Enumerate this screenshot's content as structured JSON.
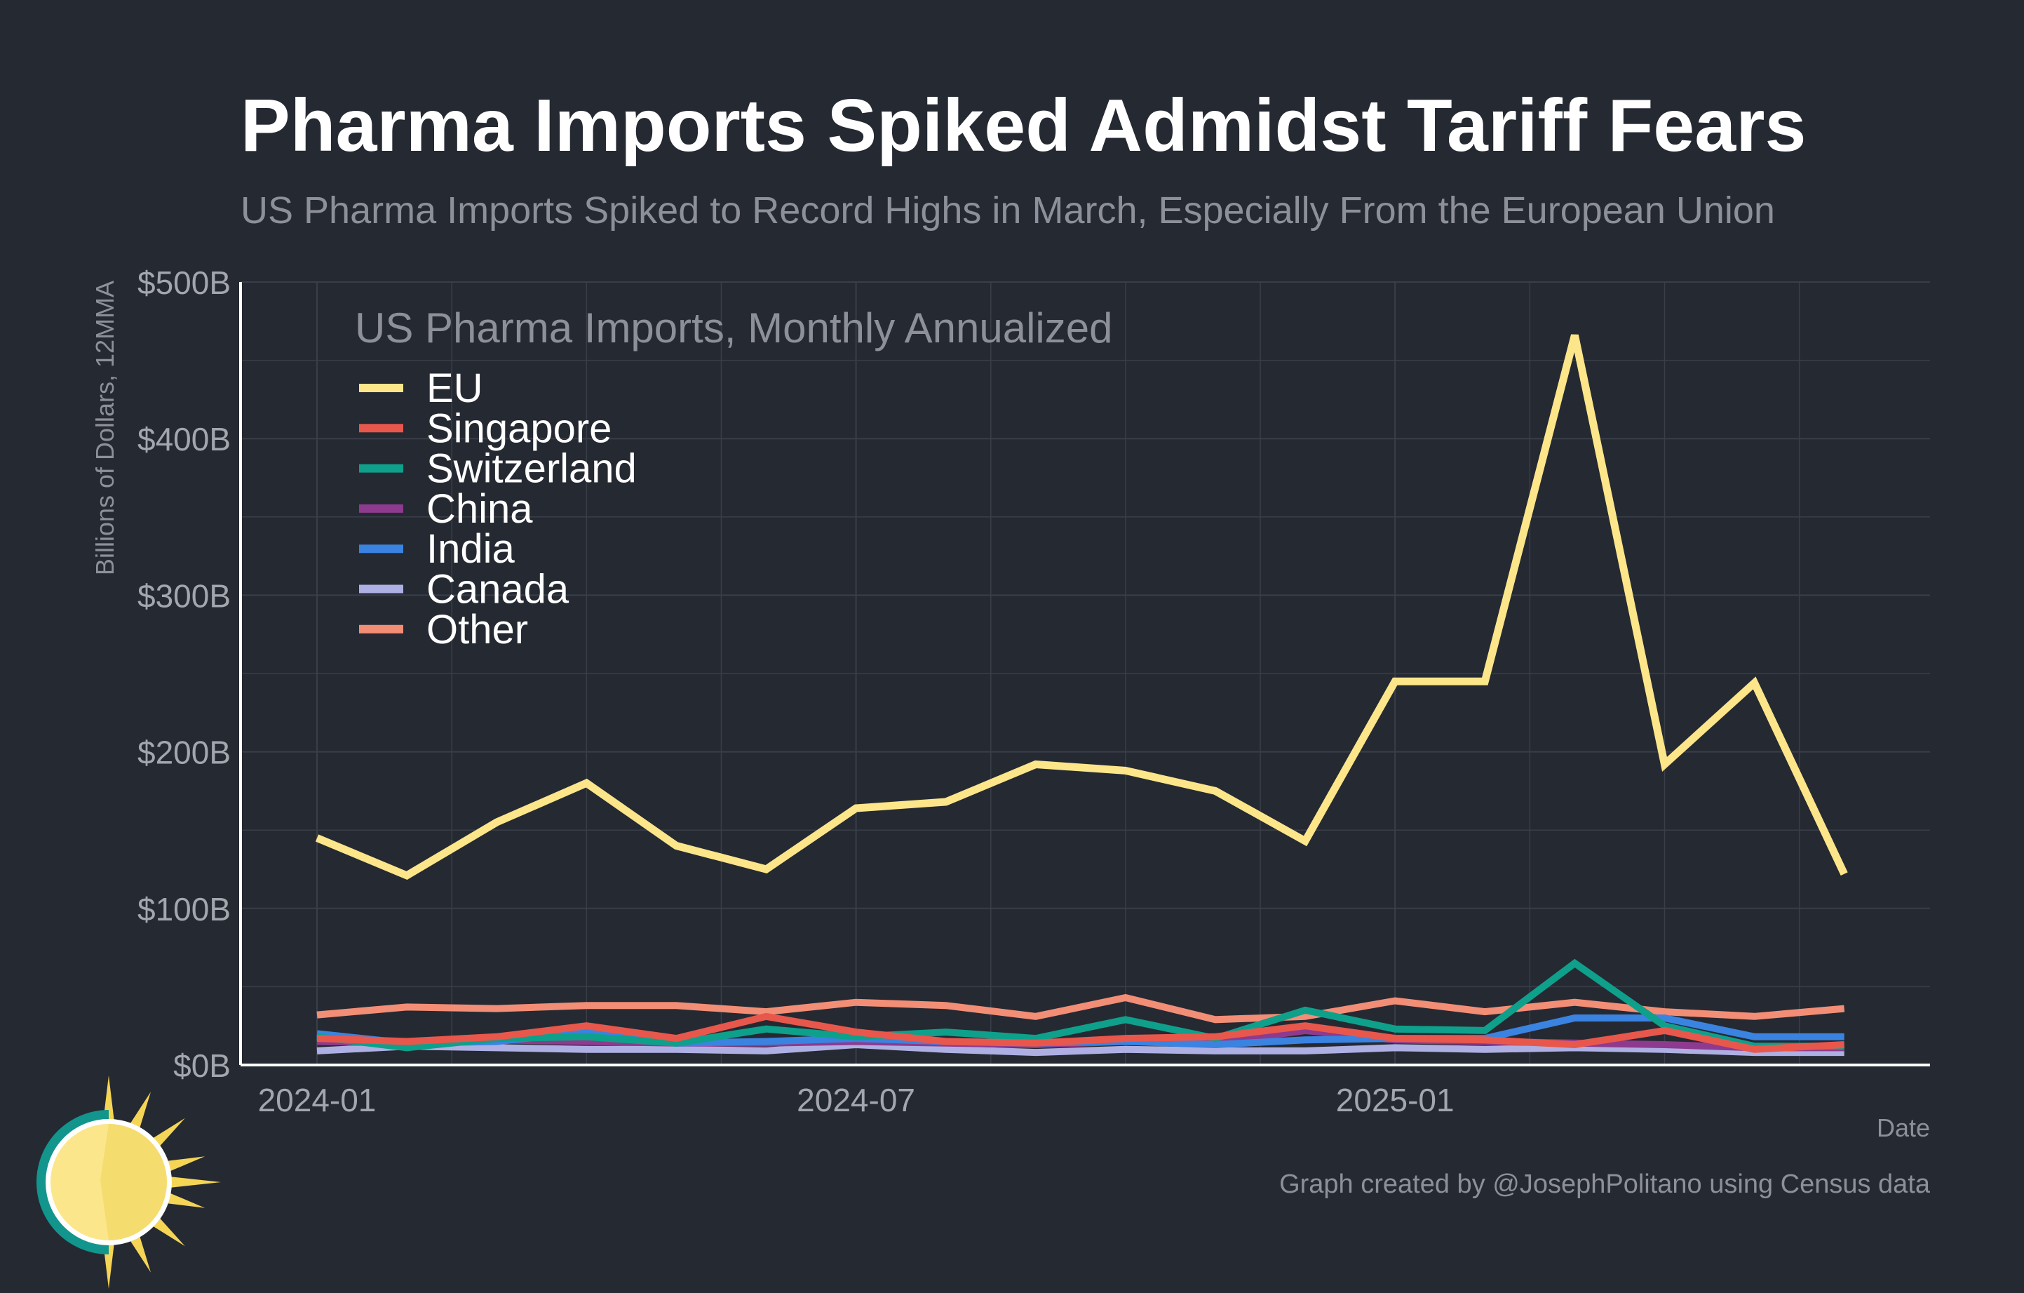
{
  "chart_data": {
    "type": "line",
    "title": "Pharma Imports Spiked Admidst Tariff Fears",
    "subtitle": "US Pharma Imports Spiked to Record Highs in March, Especially From the European Union",
    "ylabel": "Billions of Dollars, 12MMA",
    "xlabel": "Date",
    "legend_title": "US Pharma Imports, Monthly Annualized",
    "legend_position": "top-left",
    "credit": "Graph created by @JosephPolitano using Census data",
    "ylim": [
      0,
      500
    ],
    "yticks": [
      0,
      100,
      200,
      300,
      400,
      500
    ],
    "ytick_labels": [
      "$0B",
      "$100B",
      "$200B",
      "$300B",
      "$400B",
      "$500B"
    ],
    "xticks": [
      "2024-01",
      "2024-07",
      "2025-01"
    ],
    "grid": true,
    "x": [
      "2024-01",
      "2024-02",
      "2024-03",
      "2024-04",
      "2024-05",
      "2024-06",
      "2024-07",
      "2024-08",
      "2024-09",
      "2024-10",
      "2024-11",
      "2024-12",
      "2025-01",
      "2025-02",
      "2025-03",
      "2025-04",
      "2025-05",
      "2025-06"
    ],
    "series": [
      {
        "name": "Other",
        "color": "#f28e76",
        "values": [
          32,
          37,
          36,
          38,
          38,
          34,
          40,
          38,
          31,
          43,
          29,
          31,
          41,
          34,
          40,
          34,
          31,
          36
        ]
      },
      {
        "name": "Canada",
        "color": "#aeb0e3",
        "values": [
          9,
          12,
          11,
          10,
          10,
          9,
          13,
          10,
          8,
          10,
          9,
          9,
          11,
          10,
          11,
          10,
          8,
          8
        ]
      },
      {
        "name": "China",
        "color": "#8e3a8e",
        "values": [
          15,
          14,
          16,
          15,
          14,
          14,
          15,
          14,
          13,
          15,
          14,
          22,
          16,
          15,
          14,
          13,
          11,
          11
        ]
      },
      {
        "name": "India",
        "color": "#3a83e0",
        "values": [
          20,
          14,
          15,
          21,
          14,
          15,
          17,
          15,
          14,
          15,
          13,
          16,
          17,
          17,
          30,
          30,
          18,
          18
        ]
      },
      {
        "name": "Switzerland",
        "color": "#0ea08b",
        "values": [
          18,
          11,
          17,
          18,
          14,
          23,
          18,
          21,
          17,
          29,
          17,
          35,
          23,
          22,
          65,
          25,
          12,
          12
        ]
      },
      {
        "name": "Singapore",
        "color": "#e8574c",
        "values": [
          17,
          15,
          18,
          25,
          17,
          31,
          21,
          15,
          14,
          17,
          18,
          25,
          17,
          16,
          13,
          22,
          10,
          13
        ]
      },
      {
        "name": "EU",
        "color": "#fde68a",
        "values": [
          145,
          121,
          155,
          180,
          140,
          125,
          164,
          168,
          192,
          188,
          175,
          143,
          245,
          245,
          466,
          192,
          244,
          122
        ]
      }
    ],
    "legend_order": [
      "EU",
      "Singapore",
      "Switzerland",
      "China",
      "India",
      "Canada",
      "Other"
    ]
  },
  "colors": {
    "background": "#252932",
    "grid": "#3a3e48",
    "axis": "#ffffff",
    "logo_teal": "#12958c",
    "logo_sun": "#fbe68c",
    "logo_ray": "#f5d556"
  }
}
